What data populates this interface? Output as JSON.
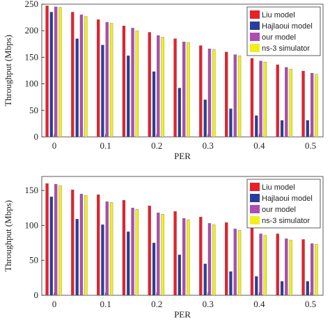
{
  "chart_data": [
    {
      "type": "bar",
      "xlabel": "PER",
      "ylabel": "Throughput (Mbps)",
      "categories": [
        "0",
        null,
        "0.1",
        null,
        "0.2",
        null,
        "0.3",
        null,
        "0.4",
        null,
        "0.5"
      ],
      "series": [
        {
          "name": "Liu model",
          "color": "#e8202a",
          "values": [
            247,
            235,
            221,
            209,
            197,
            185,
            172,
            160,
            148,
            136,
            124
          ]
        },
        {
          "name": "Hajlaoui model",
          "color": "#2a3d9a",
          "values": [
            235,
            185,
            173,
            153,
            123,
            92,
            70,
            53,
            40,
            31,
            31
          ]
        },
        {
          "name": "our model",
          "color": "#b04cb0",
          "values": [
            245,
            230,
            216,
            205,
            191,
            179,
            166,
            155,
            143,
            131,
            120
          ]
        },
        {
          "name": "ns-3 simulator",
          "color": "#f2ee1e",
          "values": [
            244,
            227,
            214,
            200,
            188,
            178,
            165,
            153,
            141,
            128,
            118
          ]
        }
      ],
      "ylim": [
        0,
        250
      ],
      "yticks": [
        0,
        50,
        100,
        150,
        200,
        250
      ],
      "legend": "upper right"
    },
    {
      "type": "bar",
      "xlabel": "PER",
      "ylabel": "Throughput (Mbps)",
      "categories": [
        "0",
        null,
        "0.1",
        null,
        "0.2",
        null,
        "0.3",
        null,
        "0.4",
        null,
        "0.5"
      ],
      "series": [
        {
          "name": "Liu model",
          "color": "#e8202a",
          "values": [
            160,
            151,
            144,
            136,
            128,
            120,
            112,
            104,
            96,
            88,
            80
          ]
        },
        {
          "name": "Hajlaoui model",
          "color": "#2a3d9a",
          "values": [
            141,
            109,
            101,
            91,
            75,
            58,
            45,
            34,
            27,
            20,
            20
          ]
        },
        {
          "name": "our model",
          "color": "#b04cb0",
          "values": [
            159,
            145,
            134,
            125,
            118,
            110,
            103,
            95,
            88,
            81,
            74
          ]
        },
        {
          "name": "ns-3 simulator",
          "color": "#f2ee1e",
          "values": [
            157,
            143,
            133,
            123,
            116,
            108,
            101,
            93,
            86,
            79,
            73
          ]
        }
      ],
      "ylim": [
        0,
        170
      ],
      "yticks": [
        0,
        50,
        100,
        150
      ],
      "legend": "upper right"
    }
  ]
}
